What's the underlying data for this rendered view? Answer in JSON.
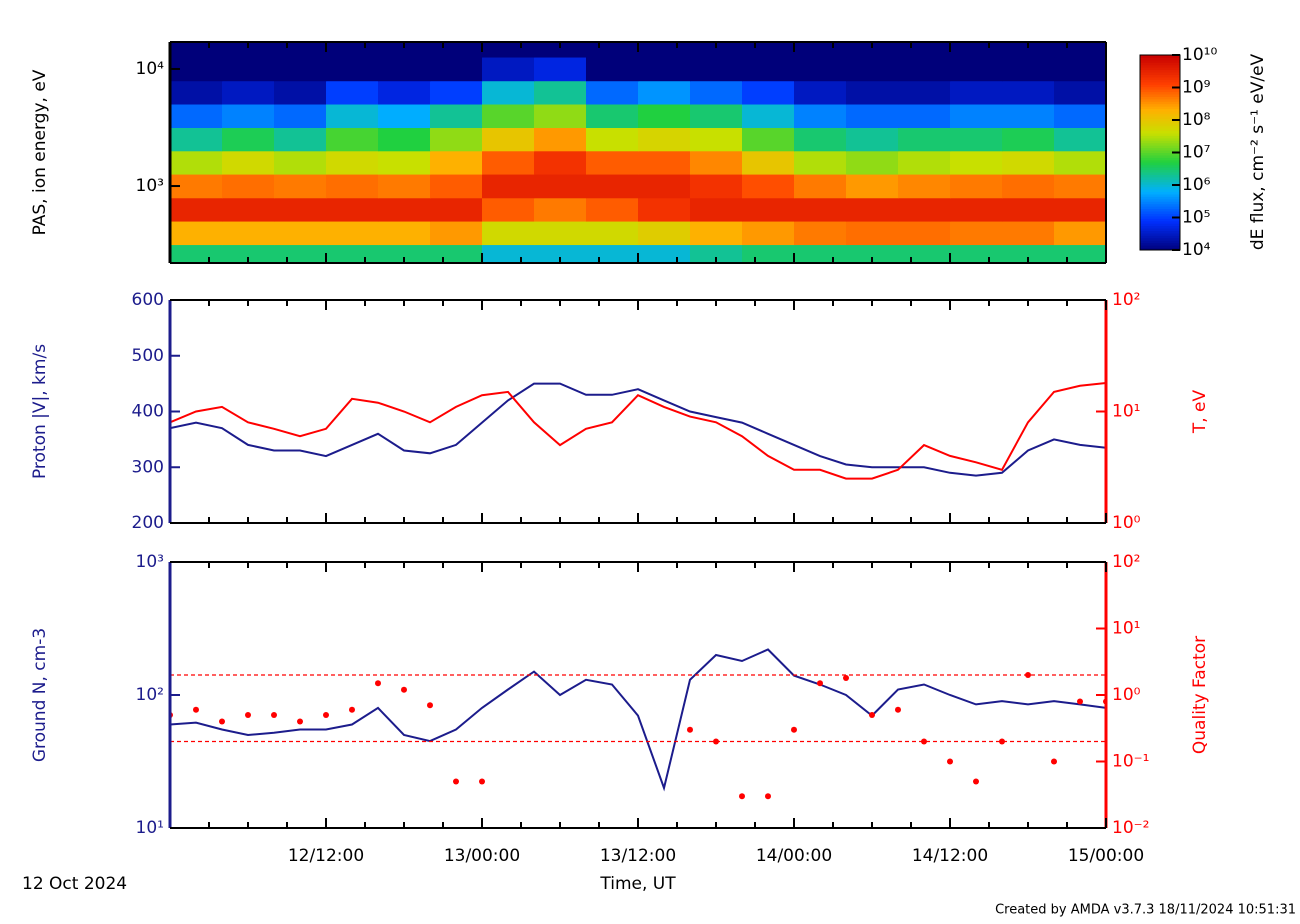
{
  "time_axis": {
    "xlim": [
      "2024-10-12T00:00",
      "2024-10-15T00:00"
    ],
    "xticks": [
      {
        "value": "2024-10-12T12:00",
        "label": "12/12:00"
      },
      {
        "value": "2024-10-13T00:00",
        "label": "13/00:00"
      },
      {
        "value": "2024-10-13T12:00",
        "label": "13/12:00"
      },
      {
        "value": "2024-10-14T00:00",
        "label": "14/00:00"
      },
      {
        "value": "2024-10-14T12:00",
        "label": "14/12:00"
      },
      {
        "value": "2024-10-15T00:00",
        "label": "15/00:00"
      }
    ],
    "xminorticks": [
      "2024-10-12T03:00",
      "2024-10-12T06:00",
      "2024-10-12T09:00",
      "2024-10-12T15:00",
      "2024-10-12T18:00",
      "2024-10-12T21:00",
      "2024-10-13T03:00",
      "2024-10-13T06:00",
      "2024-10-13T09:00",
      "2024-10-13T15:00",
      "2024-10-13T18:00",
      "2024-10-13T21:00",
      "2024-10-14T03:00",
      "2024-10-14T06:00",
      "2024-10-14T09:00",
      "2024-10-14T15:00",
      "2024-10-14T18:00",
      "2024-10-14T21:00"
    ],
    "xlabel": "Time, UT",
    "date": "12 Oct 2024"
  },
  "footer": "Created by AMDA v3.7.3 18/11/2024 10:51:31",
  "chart_data": [
    {
      "type": "heatmap",
      "ylabel": "PAS, ion energy, eV",
      "zlabel": "dE flux, cm⁻² s⁻¹ eV/eV",
      "log_y": true,
      "ylim": [
        220,
        17000
      ],
      "yticks": [
        {
          "value": 1000,
          "label": "10³"
        },
        {
          "value": 10000,
          "label": "10⁴"
        }
      ],
      "zlim": [
        10000,
        10000000000
      ],
      "zticks": [
        {
          "value": 10000,
          "label": "10⁴"
        },
        {
          "value": 100000,
          "label": "10⁵"
        },
        {
          "value": 1000000,
          "label": "10⁶"
        },
        {
          "value": 10000000,
          "label": "10⁷"
        },
        {
          "value": 100000000,
          "label": "10⁸"
        },
        {
          "value": 1000000000,
          "label": "10⁹"
        },
        {
          "value": 10000000000,
          "label": "10¹⁰"
        }
      ],
      "x": [
        "2024-10-12T02:00",
        "2024-10-12T06:00",
        "2024-10-12T10:00",
        "2024-10-12T14:00",
        "2024-10-12T18:00",
        "2024-10-12T22:00",
        "2024-10-13T02:00",
        "2024-10-13T06:00",
        "2024-10-13T10:00",
        "2024-10-13T14:00",
        "2024-10-13T18:00",
        "2024-10-13T22:00",
        "2024-10-14T02:00",
        "2024-10-14T06:00",
        "2024-10-14T10:00",
        "2024-10-14T14:00",
        "2024-10-14T18:00",
        "2024-10-14T22:00"
      ],
      "y": [
        250,
        400,
        630,
        1000,
        1600,
        2500,
        4000,
        6300,
        10000,
        16000
      ],
      "z": [
        [
          3000000.0,
          3000000.0,
          3000000.0,
          3000000.0,
          3000000.0,
          3000000.0,
          1000000.0,
          1000000.0,
          1000000.0,
          1000000.0,
          2000000.0,
          3000000.0,
          3000000.0,
          3000000.0,
          3000000.0,
          3000000.0,
          3000000.0,
          3000000.0
        ],
        [
          200000000.0,
          200000000.0,
          200000000.0,
          200000000.0,
          200000000.0,
          300000000.0,
          50000000.0,
          50000000.0,
          50000000.0,
          80000000.0,
          200000000.0,
          300000000.0,
          500000000.0,
          600000000.0,
          600000000.0,
          500000000.0,
          500000000.0,
          300000000.0
        ],
        [
          3000000000.0,
          3000000000.0,
          3000000000.0,
          3000000000.0,
          3000000000.0,
          3000000000.0,
          800000000.0,
          500000000.0,
          800000000.0,
          2000000000.0,
          3000000000.0,
          3000000000.0,
          3000000000.0,
          3000000000.0,
          3000000000.0,
          3000000000.0,
          3000000000.0,
          3000000000.0
        ],
        [
          500000000.0,
          600000000.0,
          500000000.0,
          600000000.0,
          500000000.0,
          800000000.0,
          3000000000.0,
          3000000000.0,
          3000000000.0,
          3000000000.0,
          2000000000.0,
          1000000000.0,
          500000000.0,
          300000000.0,
          400000000.0,
          500000000.0,
          600000000.0,
          500000000.0
        ],
        [
          30000000.0,
          50000000.0,
          30000000.0,
          50000000.0,
          40000000.0,
          200000000.0,
          800000000.0,
          2000000000.0,
          800000000.0,
          800000000.0,
          400000000.0,
          100000000.0,
          30000000.0,
          20000000.0,
          30000000.0,
          40000000.0,
          50000000.0,
          30000000.0
        ],
        [
          2000000.0,
          4000000.0,
          2000000.0,
          8000000.0,
          5000000.0,
          20000000.0,
          100000000.0,
          300000000.0,
          40000000.0,
          60000000.0,
          40000000.0,
          10000000.0,
          3000000.0,
          2000000.0,
          3000000.0,
          3000000.0,
          4000000.0,
          2000000.0
        ],
        [
          200000.0,
          300000.0,
          200000.0,
          1000000.0,
          600000.0,
          2000000.0,
          10000000.0,
          20000000.0,
          3000000.0,
          5000000.0,
          3000000.0,
          1000000.0,
          300000.0,
          200000.0,
          200000.0,
          300000.0,
          300000.0,
          200000.0
        ],
        [
          20000.0,
          30000.0,
          20000.0,
          100000.0,
          50000.0,
          100000.0,
          1000000.0,
          2000000.0,
          200000.0,
          400000.0,
          200000.0,
          100000.0,
          30000.0,
          20000.0,
          20000.0,
          30000.0,
          30000.0,
          20000.0
        ],
        [
          10000.0,
          10000.0,
          10000.0,
          10000.0,
          10000.0,
          10000.0,
          30000.0,
          50000.0,
          10000.0,
          10000.0,
          10000.0,
          10000.0,
          10000.0,
          10000.0,
          10000.0,
          10000.0,
          10000.0,
          10000.0
        ],
        [
          10000.0,
          10000.0,
          10000.0,
          10000.0,
          10000.0,
          10000.0,
          10000.0,
          10000.0,
          10000.0,
          10000.0,
          10000.0,
          10000.0,
          10000.0,
          10000.0,
          10000.0,
          10000.0,
          10000.0,
          10000.0
        ]
      ]
    },
    {
      "type": "line",
      "x": [
        "2024-10-12T00:00",
        "2024-10-12T02:00",
        "2024-10-12T04:00",
        "2024-10-12T06:00",
        "2024-10-12T08:00",
        "2024-10-12T10:00",
        "2024-10-12T12:00",
        "2024-10-12T14:00",
        "2024-10-12T16:00",
        "2024-10-12T18:00",
        "2024-10-12T20:00",
        "2024-10-12T22:00",
        "2024-10-13T00:00",
        "2024-10-13T02:00",
        "2024-10-13T04:00",
        "2024-10-13T06:00",
        "2024-10-13T08:00",
        "2024-10-13T10:00",
        "2024-10-13T12:00",
        "2024-10-13T14:00",
        "2024-10-13T16:00",
        "2024-10-13T18:00",
        "2024-10-13T20:00",
        "2024-10-13T22:00",
        "2024-10-14T00:00",
        "2024-10-14T02:00",
        "2024-10-14T04:00",
        "2024-10-14T06:00",
        "2024-10-14T08:00",
        "2024-10-14T10:00",
        "2024-10-14T12:00",
        "2024-10-14T14:00",
        "2024-10-14T16:00",
        "2024-10-14T18:00",
        "2024-10-14T20:00",
        "2024-10-14T22:00",
        "2024-10-15T00:00"
      ],
      "ylim": [
        200,
        600
      ],
      "yticks": [
        200,
        300,
        400,
        500,
        600
      ],
      "y2log": true,
      "y2lim": [
        1,
        100
      ],
      "y2ticks": [
        {
          "value": 1,
          "label": "10⁰"
        },
        {
          "value": 10,
          "label": "10¹"
        },
        {
          "value": 100,
          "label": "10²"
        }
      ],
      "series": [
        {
          "name": "Proton |V|, km/s",
          "color": "#1c1c8c",
          "values": [
            370,
            380,
            370,
            340,
            330,
            330,
            320,
            340,
            360,
            330,
            325,
            340,
            380,
            420,
            450,
            450,
            430,
            430,
            440,
            420,
            400,
            390,
            380,
            360,
            340,
            320,
            305,
            300,
            300,
            300,
            290,
            285,
            290,
            330,
            350,
            340,
            335
          ]
        },
        {
          "name": "T, eV",
          "color": "#ff0000",
          "axis": "y2",
          "values": [
            8,
            10,
            11,
            8,
            7,
            6,
            7,
            13,
            12,
            10,
            8,
            11,
            14,
            15,
            8,
            5,
            7,
            8,
            14,
            11,
            9,
            8,
            6,
            4,
            3,
            3,
            2.5,
            2.5,
            3,
            5,
            4,
            3.5,
            3,
            8,
            15,
            17,
            18
          ]
        }
      ]
    },
    {
      "type": "line",
      "x": [
        "2024-10-12T00:00",
        "2024-10-12T02:00",
        "2024-10-12T04:00",
        "2024-10-12T06:00",
        "2024-10-12T08:00",
        "2024-10-12T10:00",
        "2024-10-12T12:00",
        "2024-10-12T14:00",
        "2024-10-12T16:00",
        "2024-10-12T18:00",
        "2024-10-12T20:00",
        "2024-10-12T22:00",
        "2024-10-13T00:00",
        "2024-10-13T02:00",
        "2024-10-13T04:00",
        "2024-10-13T06:00",
        "2024-10-13T08:00",
        "2024-10-13T10:00",
        "2024-10-13T12:00",
        "2024-10-13T14:00",
        "2024-10-13T16:00",
        "2024-10-13T18:00",
        "2024-10-13T20:00",
        "2024-10-13T22:00",
        "2024-10-14T00:00",
        "2024-10-14T02:00",
        "2024-10-14T04:00",
        "2024-10-14T06:00",
        "2024-10-14T08:00",
        "2024-10-14T10:00",
        "2024-10-14T12:00",
        "2024-10-14T14:00",
        "2024-10-14T16:00",
        "2024-10-14T18:00",
        "2024-10-14T20:00",
        "2024-10-14T22:00",
        "2024-10-15T00:00"
      ],
      "log_y": true,
      "ylim": [
        10,
        1000
      ],
      "yticks": [
        {
          "value": 10,
          "label": "10¹"
        },
        {
          "value": 100,
          "label": "10²"
        },
        {
          "value": 1000,
          "label": "10³"
        }
      ],
      "y2log": true,
      "y2lim": [
        0.01,
        100
      ],
      "y2ticks": [
        {
          "value": 0.01,
          "label": "10⁻²"
        },
        {
          "value": 0.1,
          "label": "10⁻¹"
        },
        {
          "value": 1,
          "label": "10⁰"
        },
        {
          "value": 10,
          "label": "10¹"
        },
        {
          "value": 100,
          "label": "10²"
        }
      ],
      "y2lines": [
        2,
        0.2
      ],
      "series": [
        {
          "name": "Ground N, cm-3",
          "color": "#1c1c8c",
          "values": [
            60,
            62,
            55,
            50,
            52,
            55,
            55,
            60,
            80,
            50,
            45,
            55,
            80,
            110,
            150,
            100,
            130,
            120,
            70,
            20,
            130,
            200,
            180,
            220,
            140,
            120,
            100,
            70,
            110,
            120,
            100,
            85,
            90,
            85,
            90,
            85,
            80
          ]
        },
        {
          "name": "Quality Factor",
          "color": "#ff0000",
          "axis": "y2",
          "style": "points",
          "values": [
            0.5,
            0.6,
            0.4,
            0.5,
            0.5,
            0.4,
            0.5,
            0.6,
            1.5,
            1.2,
            0.7,
            0.05,
            0.05,
            null,
            null,
            null,
            null,
            null,
            null,
            null,
            0.3,
            0.2,
            0.03,
            0.03,
            0.3,
            1.5,
            1.8,
            0.5,
            0.6,
            0.2,
            0.1,
            0.05,
            0.2,
            2,
            0.1,
            0.8,
            0.8
          ]
        }
      ]
    }
  ]
}
